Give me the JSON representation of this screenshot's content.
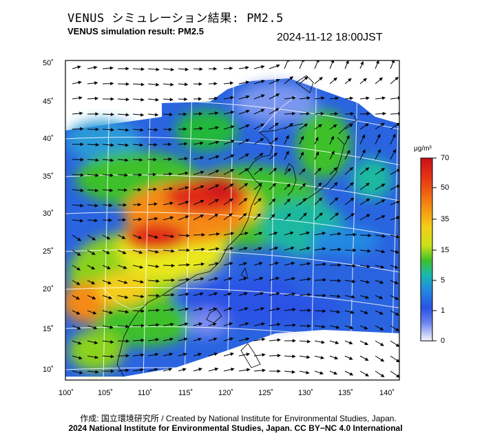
{
  "header": {
    "title_jp": "VENUS シミュレーション結果: PM2.5",
    "title_en": "VENUS simulation result: PM2.5",
    "datetime": "2024-11-12 18:00JST"
  },
  "axes": {
    "lat_ticks": [
      "50˚",
      "45˚",
      "40˚",
      "35˚",
      "30˚",
      "25˚",
      "20˚",
      "15˚",
      "10˚"
    ],
    "lon_ticks": [
      "100˚",
      "105˚",
      "110˚",
      "115˚",
      "120˚",
      "125˚",
      "130˚",
      "135˚",
      "140˚"
    ],
    "lat_values": [
      50,
      45,
      40,
      35,
      30,
      25,
      20,
      15,
      10
    ],
    "lon_values": [
      100,
      105,
      110,
      115,
      120,
      125,
      130,
      135,
      140
    ]
  },
  "colorbar": {
    "unit": "μg/m³",
    "labels": [
      "70",
      "50",
      "35",
      "15",
      "5",
      "1",
      "0"
    ],
    "levels": [
      70,
      50,
      35,
      15,
      5,
      1,
      0
    ],
    "colors": [
      "#d42a1a",
      "#f26a10",
      "#f7b21a",
      "#e8e81a",
      "#8ad21a",
      "#22b83a",
      "#1fb8a0",
      "#2a8ad8",
      "#2a4ee0",
      "#7a8cf0",
      "#f4f4fc"
    ]
  },
  "credits": {
    "line1": "作成: 国立環境研究所 / Created by National Institute for Environmental Studies, Japan.",
    "line2": "2024 National Institute for Environmental Studies, Japan. CC BY−NC 4.0 International"
  }
}
